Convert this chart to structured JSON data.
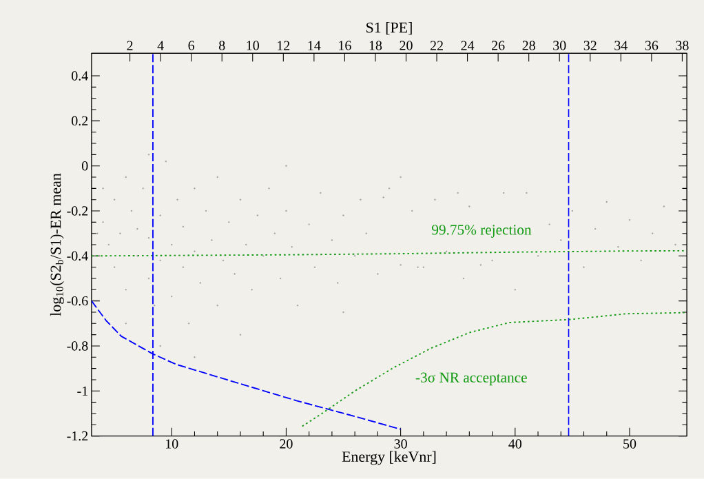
{
  "chart_data": {
    "type": "scatter",
    "xlabel": "Energy [keVnr]",
    "ylabel": "log$_{10}$(S2$_{b}$/S1)-ER mean",
    "x2label": "S1 [PE]",
    "xlim": [
      3,
      55
    ],
    "xticks": [
      10,
      20,
      30,
      40,
      50
    ],
    "x2lim": [
      -0.5,
      38.3
    ],
    "x2ticks": [
      2,
      4,
      6,
      8,
      10,
      12,
      14,
      16,
      18,
      20,
      22,
      24,
      26,
      28,
      30,
      32,
      34,
      36,
      38
    ],
    "ylim": [
      -1.2,
      0.5
    ],
    "yticks": [
      -1.2,
      -1,
      -0.8,
      -0.6,
      -0.4,
      -0.2,
      0,
      0.2,
      0.4
    ],
    "series": [
      {
        "marker": "circle",
        "color": "#a0a0a0",
        "x": [
          4,
          4.5,
          5,
          5,
          5.5,
          6,
          6,
          6.5,
          7,
          7,
          7.5,
          8,
          8,
          8.5,
          9,
          9,
          9.5,
          10,
          10,
          10.5,
          11,
          11,
          11.5,
          12,
          12,
          12.5,
          13,
          13.5,
          14,
          14,
          14.5,
          15,
          15.5,
          16,
          16.5,
          17,
          17.5,
          18,
          18.5,
          19,
          19.5,
          20,
          20.5,
          21,
          22,
          22.5,
          23,
          24,
          24.5,
          25,
          26,
          26.5,
          27,
          28,
          28.5,
          29,
          30,
          31,
          31.5,
          32,
          33,
          34,
          35,
          35.5,
          36,
          37,
          38,
          39,
          40,
          41,
          42,
          43,
          44,
          45,
          46,
          47,
          48,
          49,
          50,
          51,
          52,
          53,
          54,
          3.5,
          4,
          6,
          9,
          12,
          8,
          16,
          25,
          40,
          20,
          30
        ],
        "values": [
          -0.25,
          -0.35,
          -0.15,
          -0.45,
          -0.3,
          -0.05,
          -0.55,
          -0.2,
          -0.4,
          -0.28,
          -0.1,
          -0.5,
          -0.32,
          -0.62,
          -0.22,
          -0.42,
          0.02,
          -0.35,
          -0.58,
          -0.15,
          -0.45,
          -0.27,
          -0.7,
          -0.1,
          -0.38,
          -0.52,
          -0.2,
          -0.33,
          -0.62,
          -0.05,
          -0.42,
          -0.25,
          -0.48,
          -0.15,
          -0.35,
          -0.55,
          -0.22,
          -0.4,
          -0.1,
          -0.3,
          -0.5,
          -0.2,
          -0.36,
          -0.62,
          -0.26,
          -0.45,
          -0.12,
          -0.33,
          -0.52,
          -0.22,
          -0.4,
          -0.15,
          -0.3,
          -0.48,
          -0.14,
          -0.1,
          -0.44,
          -0.2,
          -0.45,
          -0.45,
          -0.15,
          -0.38,
          -0.12,
          -0.5,
          -0.18,
          -0.44,
          -0.42,
          -0.12,
          -0.3,
          -0.12,
          -0.4,
          -0.26,
          -0.33,
          -0.2,
          -0.45,
          -0.28,
          -0.16,
          -0.36,
          -0.24,
          -0.42,
          -0.3,
          -0.18,
          -0.35,
          -0.3,
          -0.1,
          -0.7,
          -0.8,
          -0.85,
          0.05,
          -0.75,
          -0.65,
          -0.55,
          0.0,
          -0.05
        ]
      },
      {
        "type": "line",
        "marker": "none",
        "line_style": "dashed",
        "color": "#0000ff",
        "x": [
          3,
          4.27,
          5.6,
          8.34,
          10.4,
          15.8,
          20.9,
          26,
          30
        ],
        "values": [
          -0.6,
          -0.687,
          -0.757,
          -0.835,
          -0.882,
          -0.965,
          -1.043,
          -1.113,
          -1.17
        ]
      },
      {
        "type": "line",
        "marker": "none",
        "line_style": "dotted",
        "color": "#119911",
        "name": "99.75% rejection",
        "x": [
          3,
          10,
          20,
          30,
          40,
          50,
          55
        ],
        "values": [
          -0.4,
          -0.398,
          -0.395,
          -0.39,
          -0.383,
          -0.378,
          -0.377
        ]
      },
      {
        "type": "line",
        "marker": "none",
        "line_style": "dotted",
        "color": "#119911",
        "name": "-3σ NR acceptance",
        "x": [
          21.4,
          23.25,
          26,
          29.4,
          32.7,
          36.1,
          39.5,
          44.9,
          49.7,
          54.8
        ],
        "values": [
          -1.157,
          -1.096,
          -1.0,
          -0.896,
          -0.809,
          -0.739,
          -0.696,
          -0.682,
          -0.657,
          -0.652
        ]
      }
    ],
    "ref_lines": [
      {
        "axis": "x",
        "value": 8.36,
        "color": "#0000ff",
        "line_style": "dashed"
      },
      {
        "axis": "x",
        "value": 44.67,
        "color": "#0000ff",
        "line_style": "dashed"
      }
    ]
  }
}
